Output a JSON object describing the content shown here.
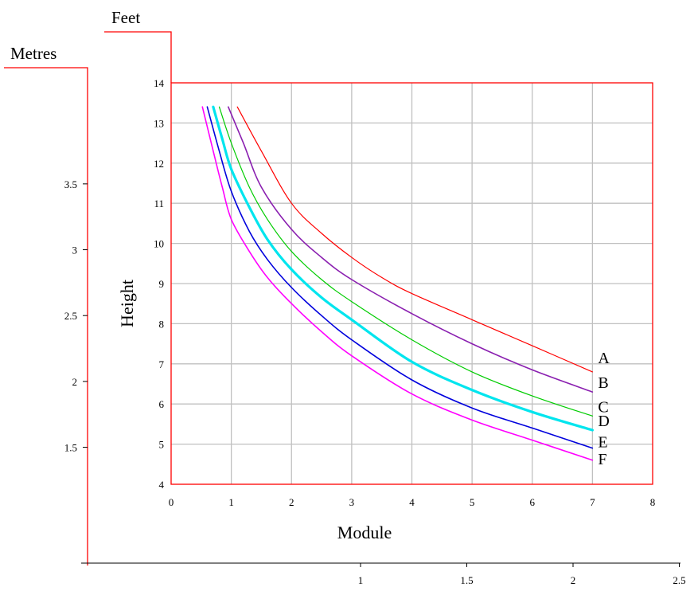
{
  "chart_data": {
    "type": "line",
    "title": "",
    "xlabel": "Module",
    "ylabel": "Height",
    "xlim": [
      0,
      8
    ],
    "ylim": [
      4,
      14
    ],
    "x_ticks": [
      "0",
      "1",
      "2",
      "3",
      "4",
      "5",
      "6",
      "7",
      "8"
    ],
    "y_ticks": [
      "4",
      "5",
      "6",
      "7",
      "8",
      "9",
      "10",
      "11",
      "12",
      "13",
      "14"
    ],
    "grid": true,
    "feet_axis_label": "Feet",
    "metres_axis": {
      "label": "Metres",
      "ticks": [
        {
          "label": "1.5",
          "value": 1.5
        },
        {
          "label": "2",
          "value": 2
        },
        {
          "label": "2.5",
          "value": 2.5
        },
        {
          "label": "3",
          "value": 3
        },
        {
          "label": "3.5",
          "value": 3.5
        }
      ]
    },
    "module_mm_axis": {
      "ticks": [
        {
          "label": "1",
          "value": 1
        },
        {
          "label": "1.5",
          "value": 1.5
        },
        {
          "label": "2",
          "value": 2
        },
        {
          "label": "2.5",
          "value": 2.5
        }
      ]
    },
    "series": [
      {
        "name": "A",
        "color": "#ff0000",
        "width": 1.2,
        "x": [
          1.1,
          1.5,
          2.0,
          2.5,
          3.0,
          3.5,
          4.0,
          5.0,
          6.0,
          7.0
        ],
        "y": [
          13.4,
          12.3,
          11.0,
          10.25,
          9.65,
          9.15,
          8.75,
          8.1,
          7.45,
          6.8
        ]
      },
      {
        "name": "B",
        "color": "#8a1fb0",
        "width": 1.6,
        "x": [
          0.95,
          1.2,
          1.5,
          2.0,
          2.5,
          3.0,
          4.0,
          5.0,
          6.0,
          7.0
        ],
        "y": [
          13.4,
          12.5,
          11.4,
          10.35,
          9.65,
          9.1,
          8.25,
          7.5,
          6.85,
          6.3
        ]
      },
      {
        "name": "C",
        "color": "#00cc00",
        "width": 1.2,
        "x": [
          0.8,
          1.0,
          1.3,
          1.6,
          2.0,
          2.5,
          3.0,
          4.0,
          5.0,
          6.0,
          7.0
        ],
        "y": [
          13.4,
          12.5,
          11.4,
          10.6,
          9.8,
          9.1,
          8.55,
          7.6,
          6.8,
          6.2,
          5.7
        ]
      },
      {
        "name": "D",
        "color": "#00e5ee",
        "width": 3.2,
        "x": [
          0.7,
          0.85,
          1.0,
          1.3,
          1.6,
          2.0,
          2.5,
          3.0,
          4.0,
          5.0,
          6.0,
          7.0
        ],
        "y": [
          13.4,
          12.6,
          11.85,
          10.9,
          10.1,
          9.35,
          8.65,
          8.1,
          7.05,
          6.35,
          5.8,
          5.35
        ]
      },
      {
        "name": "E",
        "color": "#0000dd",
        "width": 1.6,
        "x": [
          0.6,
          0.8,
          1.0,
          1.3,
          1.6,
          2.0,
          2.5,
          3.0,
          4.0,
          5.0,
          6.0,
          7.0
        ],
        "y": [
          13.4,
          12.3,
          11.3,
          10.3,
          9.6,
          8.9,
          8.2,
          7.6,
          6.6,
          5.9,
          5.4,
          4.9
        ]
      },
      {
        "name": "F",
        "color": "#ff00ff",
        "width": 1.6,
        "x": [
          0.52,
          0.7,
          0.85,
          1.0,
          1.3,
          1.6,
          2.0,
          2.5,
          3.0,
          4.0,
          5.0,
          6.0,
          7.0
        ],
        "y": [
          13.4,
          12.3,
          11.4,
          10.6,
          9.8,
          9.15,
          8.5,
          7.8,
          7.2,
          6.25,
          5.6,
          5.1,
          4.6
        ]
      }
    ]
  }
}
